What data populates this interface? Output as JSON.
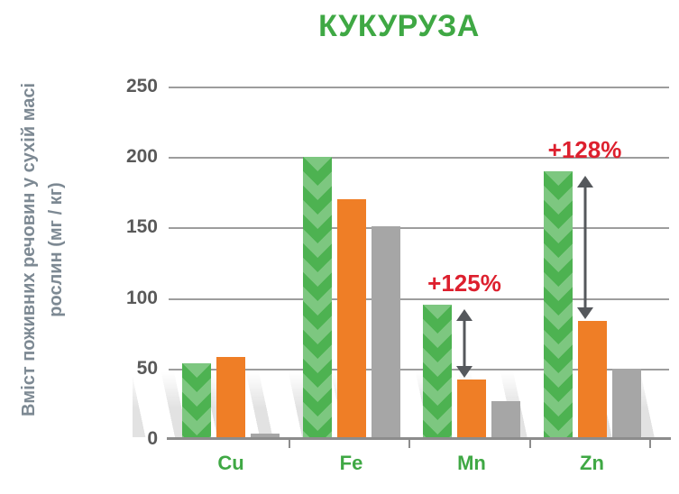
{
  "title": "КУКУРУЗА",
  "y_axis_label": {
    "line1": "Вміст поживних речовин у сухій масі",
    "line2": "рослин (мг / кг)"
  },
  "chart_data": {
    "type": "bar",
    "title": "КУКУРУЗА",
    "ylabel": "Вміст поживних речовин у сухій масі рослин (мг / кг)",
    "categories": [
      "Cu",
      "Fe",
      "Mn",
      "Zn"
    ],
    "series": [
      {
        "name": "green-textured",
        "css": "bar-green",
        "color": "#4DB251",
        "values": [
          54,
          200,
          95,
          190
        ]
      },
      {
        "name": "orange",
        "css": "bar-orange",
        "color": "#EF7E26",
        "values": [
          58,
          170,
          42,
          84
        ]
      },
      {
        "name": "gray",
        "css": "bar-gray",
        "color": "#A6A6A6",
        "values": [
          4,
          151,
          27,
          50
        ]
      }
    ],
    "ylim": [
      0,
      250
    ],
    "yticks": [
      0,
      50,
      100,
      150,
      200,
      250
    ],
    "grid": true,
    "legend": false,
    "annotations": [
      {
        "text": "+125%",
        "category": "Mn",
        "color": "#DD202E"
      },
      {
        "text": "+128%",
        "category": "Zn",
        "color": "#DD202E"
      }
    ]
  },
  "colors": {
    "title_green": "#3FA844",
    "category_green": "#3FA844",
    "grid_gray": "#9D9D9D",
    "axis_gray": "#8C8C8C",
    "tick_text": "#595959",
    "ylabel_text": "#7D8993",
    "annotation_red": "#DD202E",
    "arrow_gray": "#55585C"
  }
}
